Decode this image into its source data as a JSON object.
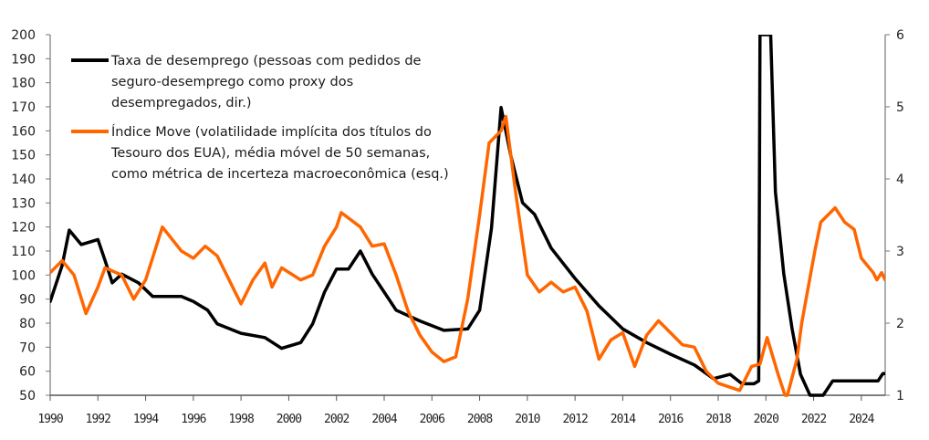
{
  "chart_data": {
    "type": "line",
    "title": "",
    "xlabel": "",
    "ylabel_left": "",
    "ylabel_right": "",
    "xlim": [
      1990,
      2025
    ],
    "ylim_left": [
      50,
      200
    ],
    "ylim_right": [
      1,
      6
    ],
    "x_ticks": [
      "1990",
      "1992",
      "1994",
      "1996",
      "1998",
      "2000",
      "2002",
      "2004",
      "2006",
      "2008",
      "2010",
      "2012",
      "2014",
      "2016",
      "2018",
      "2020",
      "2022",
      "2024"
    ],
    "y_ticks_left": [
      "50",
      "60",
      "70",
      "80",
      "90",
      "100",
      "110",
      "120",
      "130",
      "140",
      "150",
      "160",
      "170",
      "180",
      "190",
      "200"
    ],
    "y_ticks_right": [
      "1",
      "2",
      "3",
      "4",
      "5",
      "6"
    ],
    "grid": false,
    "legend_placement": "top-left",
    "series": [
      {
        "name_lines": [
          "Taxa de desemprego (pessoas com pedidos de",
          "seguro-desemprego como proxy dos",
          "desempregados, dir.)"
        ],
        "axis": "right",
        "color": "#000000",
        "points": [
          [
            1990.0,
            2.3
          ],
          [
            1990.5,
            2.8
          ],
          [
            1990.8,
            3.29
          ],
          [
            1991.3,
            3.09
          ],
          [
            1992.0,
            3.16
          ],
          [
            1992.3,
            2.87
          ],
          [
            1992.6,
            2.56
          ],
          [
            1993.0,
            2.68
          ],
          [
            1993.7,
            2.56
          ],
          [
            1994.3,
            2.37
          ],
          [
            1995.5,
            2.37
          ],
          [
            1996.0,
            2.3
          ],
          [
            1996.6,
            2.18
          ],
          [
            1997.0,
            1.99
          ],
          [
            1998.0,
            1.86
          ],
          [
            1999.0,
            1.8
          ],
          [
            1999.7,
            1.65
          ],
          [
            2000.5,
            1.73
          ],
          [
            2001.0,
            1.99
          ],
          [
            2001.5,
            2.43
          ],
          [
            2002.0,
            2.75
          ],
          [
            2002.5,
            2.75
          ],
          [
            2003.0,
            3.0
          ],
          [
            2003.5,
            2.68
          ],
          [
            2004.0,
            2.43
          ],
          [
            2004.5,
            2.18
          ],
          [
            2005.5,
            2.03
          ],
          [
            2006.5,
            1.9
          ],
          [
            2007.5,
            1.92
          ],
          [
            2008.0,
            2.18
          ],
          [
            2008.5,
            3.32
          ],
          [
            2008.9,
            4.99
          ],
          [
            2009.3,
            4.33
          ],
          [
            2009.8,
            3.67
          ],
          [
            2010.3,
            3.51
          ],
          [
            2011.0,
            3.04
          ],
          [
            2012.0,
            2.62
          ],
          [
            2013.0,
            2.24
          ],
          [
            2014.0,
            1.92
          ],
          [
            2015.0,
            1.73
          ],
          [
            2016.0,
            1.57
          ],
          [
            2017.0,
            1.42
          ],
          [
            2017.8,
            1.23
          ],
          [
            2018.5,
            1.29
          ],
          [
            2019.0,
            1.16
          ],
          [
            2019.5,
            1.16
          ],
          [
            2019.7,
            1.2
          ],
          [
            2019.75,
            6.0
          ],
          [
            2020.2,
            6.0
          ],
          [
            2020.4,
            3.82
          ],
          [
            2020.75,
            2.68
          ],
          [
            2021.1,
            1.92
          ],
          [
            2021.45,
            1.29
          ],
          [
            2021.85,
            1.0
          ],
          [
            2022.4,
            1.0
          ],
          [
            2022.6,
            1.1
          ],
          [
            2022.8,
            1.2
          ],
          [
            2024.7,
            1.2
          ],
          [
            2024.9,
            1.3
          ],
          [
            2025.0,
            1.3
          ]
        ]
      },
      {
        "name_lines": [
          "Índice Move (volatilidade implícita dos títulos do",
          "Tesouro dos EUA), média móvel de 50 semanas,",
          "como métrica de incerteza macroeconômica (esq.)"
        ],
        "axis": "left",
        "color": "#ff6600",
        "points": [
          [
            1990.0,
            101
          ],
          [
            1990.5,
            106
          ],
          [
            1991.0,
            100
          ],
          [
            1991.5,
            84
          ],
          [
            1992.0,
            95
          ],
          [
            1992.3,
            103
          ],
          [
            1993.0,
            100
          ],
          [
            1993.5,
            90
          ],
          [
            1994.0,
            98
          ],
          [
            1994.7,
            120
          ],
          [
            1995.5,
            110
          ],
          [
            1996.0,
            107
          ],
          [
            1996.5,
            112
          ],
          [
            1997.0,
            108
          ],
          [
            1998.0,
            88
          ],
          [
            1998.5,
            98
          ],
          [
            1999.0,
            105
          ],
          [
            1999.3,
            95
          ],
          [
            1999.7,
            103
          ],
          [
            2000.5,
            98
          ],
          [
            2001.0,
            100
          ],
          [
            2001.5,
            112
          ],
          [
            2002.0,
            120
          ],
          [
            2002.2,
            126
          ],
          [
            2003.0,
            120
          ],
          [
            2003.5,
            112
          ],
          [
            2004.0,
            113
          ],
          [
            2004.5,
            100
          ],
          [
            2005.0,
            85
          ],
          [
            2005.5,
            75
          ],
          [
            2006.0,
            68
          ],
          [
            2006.5,
            64
          ],
          [
            2007.0,
            66
          ],
          [
            2007.5,
            90
          ],
          [
            2008.0,
            125
          ],
          [
            2008.4,
            155
          ],
          [
            2008.9,
            160
          ],
          [
            2009.1,
            166
          ],
          [
            2009.5,
            135
          ],
          [
            2010.0,
            100
          ],
          [
            2010.5,
            93
          ],
          [
            2011.0,
            97
          ],
          [
            2011.5,
            93
          ],
          [
            2012.0,
            95
          ],
          [
            2012.5,
            85
          ],
          [
            2013.0,
            65
          ],
          [
            2013.5,
            73
          ],
          [
            2014.0,
            76
          ],
          [
            2014.5,
            62
          ],
          [
            2015.0,
            75
          ],
          [
            2015.5,
            81
          ],
          [
            2016.0,
            76
          ],
          [
            2016.5,
            71
          ],
          [
            2017.0,
            70
          ],
          [
            2017.5,
            60
          ],
          [
            2018.0,
            55
          ],
          [
            2018.9,
            52
          ],
          [
            2019.4,
            62
          ],
          [
            2019.75,
            63
          ],
          [
            2020.05,
            74
          ],
          [
            2020.5,
            59
          ],
          [
            2020.8,
            50
          ],
          [
            2020.9,
            50
          ],
          [
            2021.3,
            65
          ],
          [
            2021.5,
            80
          ],
          [
            2022.05,
            110
          ],
          [
            2022.3,
            122
          ],
          [
            2022.9,
            128
          ],
          [
            2023.3,
            122
          ],
          [
            2023.7,
            119
          ],
          [
            2024.0,
            107
          ],
          [
            2024.5,
            101
          ],
          [
            2024.65,
            98
          ],
          [
            2024.85,
            101
          ],
          [
            2025.0,
            98
          ]
        ]
      }
    ]
  }
}
